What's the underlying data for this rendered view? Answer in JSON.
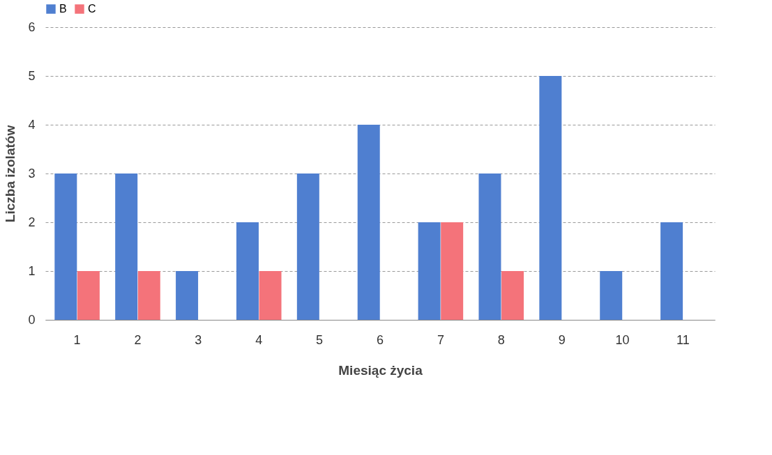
{
  "chart_data": {
    "type": "bar",
    "xlabel": "Miesiąc życia",
    "ylabel": "Liczba izolatów",
    "categories": [
      "1",
      "2",
      "3",
      "4",
      "5",
      "6",
      "7",
      "8",
      "9",
      "10",
      "11"
    ],
    "series": [
      {
        "name": "B",
        "color": "#4f7fd0",
        "values": [
          3,
          3,
          1,
          2,
          3,
          4,
          2,
          3,
          5,
          1,
          2
        ]
      },
      {
        "name": "C",
        "color": "#f4737a",
        "values": [
          1,
          1,
          null,
          1,
          null,
          null,
          2,
          1,
          null,
          null,
          null
        ]
      }
    ],
    "ylim": [
      0,
      6
    ],
    "yticks": [
      0,
      1,
      2,
      3,
      4,
      5,
      6
    ],
    "grid": "y",
    "legend": "top"
  }
}
